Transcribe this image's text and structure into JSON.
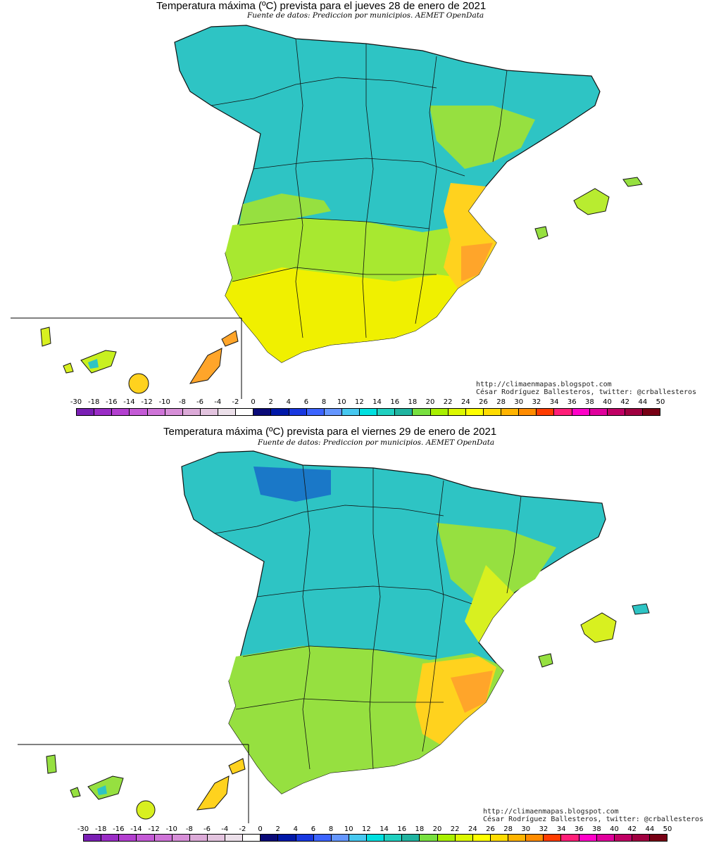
{
  "maps": [
    {
      "title": "Temperatura máxima (ºC) prevista para el jueves 28 de enero de 2021",
      "subtitle": "Fuente de datos: Prediccion por municipios. AEMET OpenData",
      "credit_url": "http://climaenmapas.blogspot.com",
      "credit_author": "César Rodríguez Ballesteros, twitter: @crballesteros"
    },
    {
      "title": "Temperatura máxima (ºC) prevista para el viernes 29 de enero de 2021",
      "subtitle": "Fuente de datos: Prediccion por municipios. AEMET OpenData",
      "credit_url": "http://climaenmapas.blogspot.com",
      "credit_author": "César Rodríguez Ballesteros, twitter: @crballesteros"
    }
  ],
  "legend": {
    "ticks": [
      "-30",
      "-18",
      "-16",
      "-14",
      "-12",
      "-10",
      "-8",
      "-6",
      "-4",
      "-2",
      "0",
      "2",
      "4",
      "6",
      "8",
      "10",
      "12",
      "14",
      "16",
      "18",
      "20",
      "22",
      "24",
      "26",
      "28",
      "30",
      "32",
      "34",
      "36",
      "38",
      "40",
      "42",
      "44",
      "50"
    ],
    "colors": [
      "#7a1fb4",
      "#9a2cc6",
      "#b33fd0",
      "#c45ad6",
      "#cf74d8",
      "#d78fd8",
      "#dcaad8",
      "#e3c4df",
      "#ece0ea",
      "#ffffff",
      "#0a0a78",
      "#0018a8",
      "#1838e0",
      "#3c64ff",
      "#6496ff",
      "#46c8f0",
      "#00e0e0",
      "#20d0c0",
      "#20b4a0",
      "#78e040",
      "#a8f000",
      "#dcf800",
      "#ffff00",
      "#ffdc00",
      "#ffb400",
      "#ff8c00",
      "#ff3c00",
      "#ff1e78",
      "#ff00c8",
      "#e0009c",
      "#c00064",
      "#a00040",
      "#780014"
    ]
  },
  "palette": {
    "cold": "#2ec4c4",
    "cool": "#4fd6c8",
    "deep": "#2aa8a8",
    "mild": "#96e040",
    "warm": "#d8f020",
    "hot": "#f0f000",
    "hotter": "#ffd21e",
    "hottest": "#ffa52a"
  }
}
